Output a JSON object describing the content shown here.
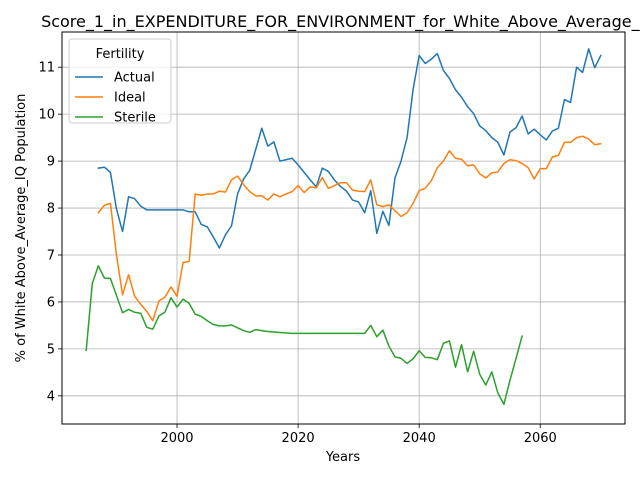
{
  "chart_data": {
    "type": "line",
    "title": "Score_1_in_EXPENDITURE_FOR_ENVIRONMENT_for_White_Above_Average_IQ",
    "xlabel": "Years",
    "ylabel": "% of White Above_Average_IQ Population",
    "xlim": [
      1981,
      2074
    ],
    "ylim": [
      3.4,
      11.75
    ],
    "xticks": [
      2000,
      2020,
      2040,
      2060
    ],
    "yticks": [
      4,
      5,
      6,
      7,
      8,
      9,
      10,
      11
    ],
    "grid": true,
    "legend": {
      "title": "Fertility",
      "placement": "top-left"
    },
    "series": [
      {
        "name": "Actual",
        "color": "#1f77b4",
        "x": [
          1987,
          1988,
          1989,
          1990,
          1991,
          1992,
          1993,
          1994,
          1995,
          1996,
          1997,
          1998,
          1999,
          2000,
          2001,
          2002,
          2003,
          2004,
          2005,
          2006,
          2007,
          2008,
          2009,
          2010,
          2011,
          2012,
          2013,
          2014,
          2015,
          2016,
          2017,
          2018,
          2019,
          2020,
          2021,
          2022,
          2023,
          2024,
          2025,
          2026,
          2027,
          2028,
          2029,
          2030,
          2031,
          2032,
          2033,
          2034,
          2035,
          2036,
          2037,
          2038,
          2039,
          2040,
          2041,
          2042,
          2043,
          2044,
          2045,
          2046,
          2047,
          2048,
          2049,
          2050,
          2051,
          2052,
          2053,
          2054,
          2055,
          2056,
          2057,
          2058,
          2059,
          2060,
          2061,
          2062,
          2063,
          2064,
          2065,
          2066,
          2067,
          2068,
          2069,
          2070
        ],
        "y": [
          8.85,
          8.87,
          8.76,
          7.98,
          7.5,
          8.24,
          8.2,
          8.04,
          7.96,
          7.96,
          7.96,
          7.96,
          7.96,
          7.96,
          7.96,
          7.92,
          7.92,
          7.65,
          7.6,
          7.38,
          7.15,
          7.43,
          7.62,
          8.3,
          8.62,
          8.8,
          9.25,
          9.7,
          9.32,
          9.41,
          9.0,
          9.03,
          9.06,
          8.92,
          8.76,
          8.6,
          8.45,
          8.85,
          8.78,
          8.6,
          8.46,
          8.36,
          8.17,
          8.13,
          7.9,
          8.37,
          7.46,
          7.93,
          7.63,
          8.64,
          9.0,
          9.5,
          10.53,
          11.25,
          11.08,
          11.17,
          11.29,
          10.93,
          10.76,
          10.52,
          10.36,
          10.16,
          10.01,
          9.75,
          9.65,
          9.5,
          9.4,
          9.13,
          9.62,
          9.71,
          9.96,
          9.58,
          9.68,
          9.56,
          9.45,
          9.64,
          9.7,
          10.31,
          10.25,
          11.0,
          10.89,
          11.39,
          10.99,
          11.25
        ]
      },
      {
        "name": "Ideal",
        "color": "#ff7f0e",
        "x": [
          1987,
          1988,
          1989,
          1990,
          1991,
          1992,
          1993,
          1994,
          1995,
          1996,
          1997,
          1998,
          1999,
          2000,
          2001,
          2002,
          2003,
          2004,
          2005,
          2006,
          2007,
          2008,
          2009,
          2010,
          2011,
          2012,
          2013,
          2014,
          2015,
          2016,
          2017,
          2018,
          2019,
          2020,
          2021,
          2022,
          2023,
          2024,
          2025,
          2026,
          2027,
          2028,
          2029,
          2030,
          2031,
          2032,
          2033,
          2034,
          2035,
          2036,
          2037,
          2038,
          2039,
          2040,
          2041,
          2042,
          2043,
          2044,
          2045,
          2046,
          2047,
          2048,
          2049,
          2050,
          2051,
          2052,
          2053,
          2054,
          2055,
          2056,
          2057,
          2058,
          2059,
          2060,
          2061,
          2062,
          2063,
          2064,
          2065,
          2066,
          2067,
          2068,
          2069,
          2070
        ],
        "y": [
          7.9,
          8.06,
          8.1,
          7.0,
          6.15,
          6.58,
          6.12,
          5.95,
          5.8,
          5.6,
          6.02,
          6.1,
          6.32,
          6.12,
          6.84,
          6.86,
          8.3,
          8.27,
          8.3,
          8.3,
          8.36,
          8.34,
          8.6,
          8.68,
          8.5,
          8.35,
          8.26,
          8.26,
          8.17,
          8.3,
          8.24,
          8.3,
          8.35,
          8.48,
          8.33,
          8.45,
          8.43,
          8.65,
          8.42,
          8.48,
          8.54,
          8.54,
          8.38,
          8.36,
          8.35,
          8.6,
          8.07,
          8.03,
          8.07,
          7.94,
          7.82,
          7.9,
          8.1,
          8.37,
          8.42,
          8.58,
          8.86,
          9.0,
          9.22,
          9.06,
          9.04,
          8.9,
          8.92,
          8.73,
          8.64,
          8.75,
          8.77,
          8.95,
          9.03,
          9.01,
          8.95,
          8.86,
          8.62,
          8.84,
          8.84,
          9.09,
          9.12,
          9.4,
          9.4,
          9.5,
          9.53,
          9.47,
          9.35,
          9.37
        ]
      },
      {
        "name": "Sterile",
        "color": "#2ca02c",
        "x": [
          1985,
          1986,
          1987,
          1988,
          1989,
          1990,
          1991,
          1992,
          1993,
          1994,
          1995,
          1996,
          1997,
          1998,
          1999,
          2000,
          2001,
          2002,
          2003,
          2004,
          2005,
          2006,
          2007,
          2008,
          2009,
          2010,
          2011,
          2012,
          2013,
          2014,
          2015,
          2016,
          2017,
          2018,
          2019,
          2020,
          2021,
          2022,
          2023,
          2024,
          2025,
          2026,
          2027,
          2028,
          2029,
          2030,
          2031,
          2032,
          2033,
          2034,
          2035,
          2036,
          2037,
          2038,
          2039,
          2040,
          2041,
          2042,
          2043,
          2044,
          2045,
          2046,
          2047,
          2048,
          2049,
          2050,
          2051,
          2052,
          2053,
          2054,
          2055,
          2056,
          2057
        ],
        "y": [
          4.97,
          6.39,
          6.77,
          6.51,
          6.5,
          6.14,
          5.77,
          5.84,
          5.78,
          5.76,
          5.46,
          5.42,
          5.7,
          5.78,
          6.09,
          5.89,
          6.06,
          5.97,
          5.74,
          5.69,
          5.6,
          5.52,
          5.49,
          5.49,
          5.51,
          5.45,
          5.39,
          5.35,
          5.41,
          5.39,
          5.37,
          5.36,
          5.35,
          5.34,
          5.33,
          5.33,
          5.33,
          5.33,
          5.33,
          5.33,
          5.33,
          5.33,
          5.33,
          5.33,
          5.33,
          5.33,
          5.33,
          5.5,
          5.26,
          5.4,
          5.06,
          4.83,
          4.8,
          4.69,
          4.79,
          4.96,
          4.82,
          4.81,
          4.77,
          5.12,
          5.17,
          4.61,
          5.09,
          4.51,
          4.95,
          4.46,
          4.23,
          4.51,
          4.06,
          3.82,
          4.33,
          4.8,
          5.27
        ]
      }
    ]
  }
}
